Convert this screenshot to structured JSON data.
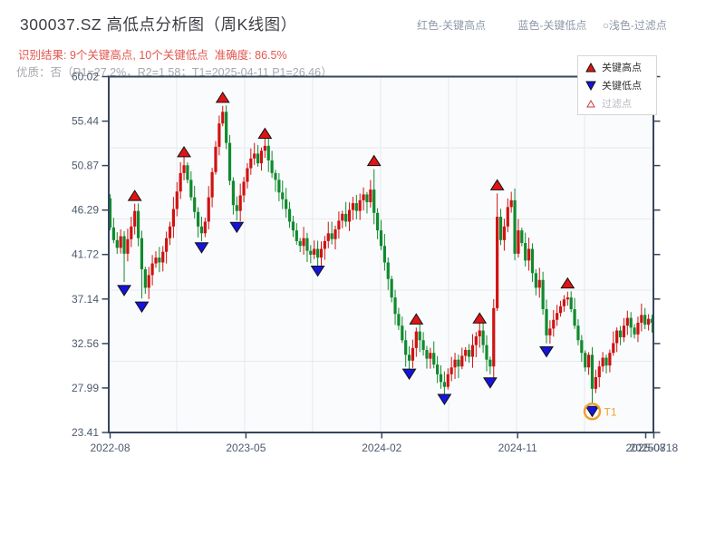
{
  "header": {
    "title": "300037.SZ 高低点分析图（周K线图）",
    "result_line": "识别结果: 9个关键高点, 10个关键低点  准确度: 86.5%",
    "quality_line": "优质：否（R1=27.2%，R2=1.58；T1=2025-04-11 P1=26.46）",
    "legend_top": [
      "红色-关键高点",
      "蓝色-关键低点",
      "○浅色-过滤点"
    ]
  },
  "chart_data": {
    "type": "candlestick",
    "title": "300037.SZ 高低点分析图（周K线图）",
    "y_ticks": [
      60.02,
      55.44,
      50.87,
      46.29,
      41.72,
      37.14,
      32.56,
      27.99,
      23.41
    ],
    "y_min": 23.41,
    "y_max": 60.02,
    "x_ticks": [
      {
        "label": "2022-08",
        "week": 0
      },
      {
        "label": "2023-05",
        "week": 38.6
      },
      {
        "label": "2024-02",
        "week": 77.2
      },
      {
        "label": "2024-11",
        "week": 115.8
      },
      {
        "label": "2025-08",
        "week": 152.2
      },
      {
        "label": "20250718",
        "week": 154.5
      }
    ],
    "start_open": 47.5,
    "weekly_close": [
      44.5,
      43.2,
      42.4,
      43.6,
      41.8,
      43.3,
      44.6,
      46.2,
      43.4,
      40.2,
      38.3,
      39.6,
      40.8,
      41.4,
      40.9,
      42.0,
      43.4,
      44.6,
      46.4,
      48.2,
      50.1,
      50.9,
      49.4,
      47.6,
      46.1,
      44.6,
      43.9,
      45.1,
      47.6,
      50.2,
      52.8,
      55.2,
      56.4,
      53.2,
      49.3,
      46.8,
      46.2,
      47.8,
      49.2,
      50.6,
      51.6,
      52.1,
      51.1,
      52.4,
      52.9,
      51.4,
      50.1,
      49.4,
      48.1,
      47.4,
      46.4,
      45.1,
      44.2,
      43.1,
      42.6,
      43.4,
      42.1,
      41.7,
      42.3,
      41.4,
      42.3,
      43.1,
      43.9,
      43.3,
      44.3,
      45.2,
      45.9,
      45.1,
      46.3,
      47.0,
      46.2,
      47.3,
      47.9,
      47.1,
      48.4,
      46.0,
      44.2,
      42.6,
      40.9,
      39.2,
      37.3,
      35.6,
      34.4,
      32.9,
      31.4,
      30.8,
      32.1,
      33.8,
      32.9,
      31.9,
      31.0,
      31.6,
      30.4,
      29.4,
      28.6,
      28.1,
      29.4,
      30.1,
      30.9,
      30.2,
      31.3,
      31.9,
      31.2,
      32.4,
      33.3,
      33.9,
      32.4,
      30.9,
      30.2,
      36.2,
      45.6,
      43.2,
      44.6,
      46.6,
      47.3,
      41.8,
      44.2,
      42.9,
      41.1,
      42.3,
      39.8,
      38.3,
      39.1,
      36.1,
      33.4,
      34.1,
      35.0,
      35.7,
      36.4,
      37.1,
      37.3,
      36.1,
      34.4,
      32.9,
      31.6,
      30.1,
      31.4,
      27.9,
      29.1,
      30.2,
      31.1,
      30.3,
      31.6,
      32.6,
      33.9,
      33.2,
      34.4,
      35.2,
      34.2,
      33.5,
      34.7,
      35.5,
      34.5,
      35.1,
      34.7
    ],
    "key_highs": [
      {
        "week": 7,
        "price": 46.9
      },
      {
        "week": 21,
        "price": 51.4
      },
      {
        "week": 32,
        "price": 57.0
      },
      {
        "week": 44,
        "price": 53.3
      },
      {
        "week": 75,
        "price": 50.5
      },
      {
        "week": 87,
        "price": 34.2
      },
      {
        "week": 105,
        "price": 34.3
      },
      {
        "week": 110,
        "price": 48.0
      },
      {
        "week": 130,
        "price": 37.9
      }
    ],
    "key_lows": [
      {
        "week": 4,
        "price": 38.9
      },
      {
        "week": 9,
        "price": 37.2
      },
      {
        "week": 26,
        "price": 43.3
      },
      {
        "week": 36,
        "price": 45.4
      },
      {
        "week": 59,
        "price": 40.9
      },
      {
        "week": 85,
        "price": 30.3
      },
      {
        "week": 95,
        "price": 27.7
      },
      {
        "week": 108,
        "price": 29.4
      },
      {
        "week": 124,
        "price": 32.6
      },
      {
        "week": 137,
        "price": 26.46,
        "t1": true
      }
    ],
    "t1_label": "T1",
    "legend": [
      {
        "label": "关键高点",
        "type": "high"
      },
      {
        "label": "关键低点",
        "type": "low"
      },
      {
        "label": "过滤点",
        "type": "filter"
      }
    ],
    "colors": {
      "up": "#d01212",
      "down": "#108a2e",
      "high_marker": "#e01414",
      "low_marker": "#1414dd",
      "filter_marker": "#c04040",
      "t1": "#f0a030",
      "axis": "#35465e",
      "grid": "#e6e9ef",
      "plot_bg": "#fafbfc",
      "tick_label": "#4d5a6e"
    },
    "legend_position": "top-right",
    "grid": true
  }
}
